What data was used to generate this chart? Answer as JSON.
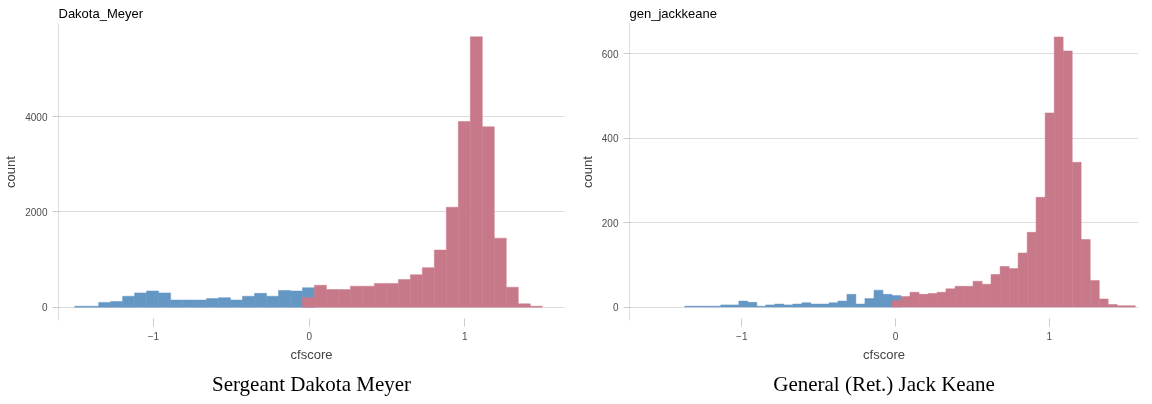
{
  "chart_data": [
    {
      "type": "histogram",
      "title": "Dakota_Meyer",
      "xlabel": "cfscore",
      "ylabel": "count",
      "annotations": [
        "Sergeant Dakota Meyer"
      ],
      "bins": [
        -1.506,
        -1.429,
        -1.352,
        -1.275,
        -1.198,
        -1.121,
        -1.044,
        -0.967,
        -0.89,
        -0.813,
        -0.736,
        -0.659,
        -0.582,
        -0.505,
        -0.428,
        -0.351,
        -0.274,
        -0.197,
        -0.12,
        -0.043,
        0.034,
        0.111,
        0.188,
        0.265,
        0.342,
        0.419,
        0.496,
        0.573,
        0.65,
        0.727,
        0.804,
        0.881,
        0.958,
        1.035,
        1.112,
        1.189,
        1.266,
        1.343,
        1.42,
        1.497
      ],
      "series": [
        {
          "color": "#6497c4",
          "values": [
            20,
            20,
            100,
            120,
            230,
            300,
            340,
            300,
            150,
            150,
            150,
            180,
            200,
            150,
            230,
            290,
            230,
            350,
            340,
            410,
            null,
            null,
            null,
            null,
            null,
            null,
            null,
            null,
            null,
            null,
            null,
            null,
            null,
            null,
            null,
            null,
            null,
            null,
            null
          ]
        },
        {
          "color": "#c87989",
          "values": [
            null,
            null,
            null,
            null,
            null,
            null,
            null,
            null,
            null,
            null,
            null,
            null,
            null,
            null,
            null,
            null,
            null,
            null,
            null,
            200,
            460,
            370,
            370,
            440,
            440,
            500,
            500,
            580,
            680,
            830,
            1200,
            2100,
            3900,
            5680,
            3790,
            1450,
            420,
            70,
            20
          ]
        }
      ],
      "xlim": [
        -1.61,
        1.64
      ],
      "ylim": [
        -280,
        5960
      ],
      "xticks": [
        -1,
        0,
        1
      ],
      "yticks": [
        0,
        2000,
        4000
      ],
      "grid": "y"
    },
    {
      "type": "histogram",
      "title": "gen_jackkeane",
      "xlabel": "cfscore",
      "ylabel": "count",
      "annotations": [
        "General (Ret.) Jack Keane"
      ],
      "bins": [
        -1.371,
        -1.312,
        -1.254,
        -1.195,
        -1.137,
        -1.078,
        -1.019,
        -0.961,
        -0.902,
        -0.844,
        -0.785,
        -0.726,
        -0.668,
        -0.609,
        -0.551,
        -0.492,
        -0.433,
        -0.375,
        -0.316,
        -0.258,
        -0.199,
        -0.14,
        -0.082,
        -0.023,
        0.035,
        0.094,
        0.153,
        0.211,
        0.27,
        0.328,
        0.387,
        0.446,
        0.504,
        0.563,
        0.621,
        0.68,
        0.739,
        0.797,
        0.856,
        0.914,
        0.973,
        1.032,
        1.09,
        1.149,
        1.207,
        1.266,
        1.325,
        1.383,
        1.442,
        1.5,
        1.559
      ],
      "series": [
        {
          "color": "#6497c4",
          "values": [
            2,
            2,
            2,
            2,
            5,
            5,
            14,
            11,
            2,
            5,
            7,
            5,
            7,
            10,
            7,
            7,
            10,
            14,
            30,
            7,
            20,
            40,
            30,
            27,
            null,
            null,
            null,
            null,
            null,
            null,
            null,
            null,
            null,
            null,
            null,
            null,
            null,
            null,
            null,
            null,
            null,
            null,
            null,
            null,
            null,
            null,
            null,
            null,
            null,
            null
          ]
        },
        {
          "color": "#c87989",
          "values": [
            null,
            null,
            null,
            null,
            null,
            null,
            null,
            null,
            null,
            null,
            null,
            null,
            null,
            null,
            null,
            null,
            null,
            null,
            null,
            null,
            null,
            null,
            null,
            15,
            25,
            35,
            30,
            32,
            35,
            43,
            49,
            49,
            61,
            54,
            77,
            96,
            91,
            128,
            177,
            260,
            460,
            640,
            607,
            343,
            160,
            63,
            19,
            6,
            3,
            3
          ]
        }
      ],
      "xlim": [
        -1.73,
        1.58
      ],
      "ylim": [
        -32,
        672
      ],
      "xticks": [
        -1,
        0,
        1
      ],
      "yticks": [
        0,
        200,
        400,
        600
      ],
      "grid": "y"
    }
  ]
}
